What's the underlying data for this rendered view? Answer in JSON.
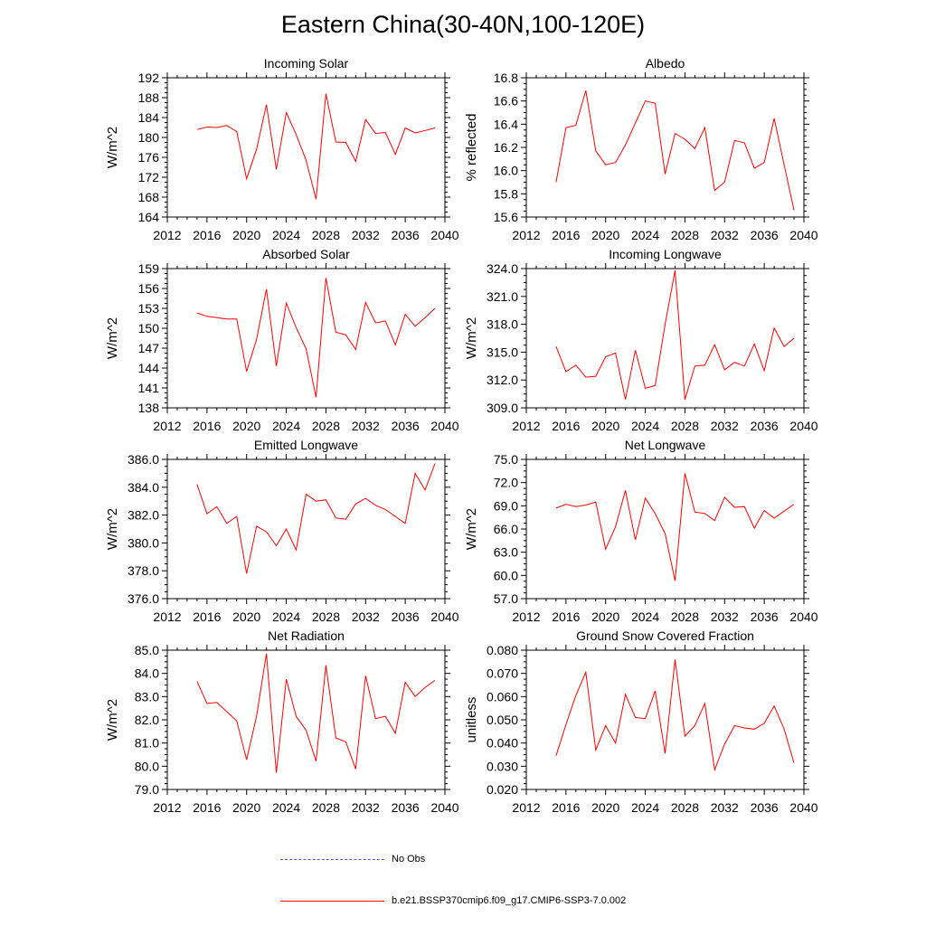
{
  "title": "Eastern China(30-40N,100-120E)",
  "colors": {
    "model": "#ff0000",
    "obs": "#5555cc",
    "axis": "#000000"
  },
  "legend": {
    "obs_label": "No Obs",
    "model_label": "b.e21.BSSP370cmip6.f09_g17.CMIP6-SSP3-7.0.002"
  },
  "chart_data": [
    {
      "type": "line",
      "title": "Incoming Solar",
      "ylabel": "W/m^2",
      "xlabel": "",
      "xlim": [
        2012,
        2040
      ],
      "xticks": [
        "2012",
        "2016",
        "2020",
        "2024",
        "2028",
        "2032",
        "2036",
        "2040"
      ],
      "ylim": [
        164,
        192
      ],
      "yticks": [
        "164",
        "168",
        "172",
        "176",
        "180",
        "184",
        "188",
        "192"
      ],
      "series": [
        {
          "name": "b.e21.BSSP370cmip6.f09_g17.CMIP6-SSP3-7.0.002",
          "x": [
            2015,
            2016,
            2017,
            2018,
            2019,
            2020,
            2021,
            2022,
            2023,
            2024,
            2025,
            2026,
            2027,
            2028,
            2029,
            2030,
            2031,
            2032,
            2033,
            2034,
            2035,
            2036,
            2037,
            2038,
            2039
          ],
          "values": [
            181.6,
            182.1,
            182.0,
            182.4,
            181.2,
            171.7,
            177.6,
            186.6,
            173.6,
            185.0,
            180.6,
            175.4,
            167.6,
            188.8,
            179.1,
            179.0,
            175.2,
            183.6,
            180.8,
            181.0,
            176.6,
            181.9,
            180.9,
            181.4,
            181.9
          ]
        }
      ]
    },
    {
      "type": "line",
      "title": "Albedo",
      "ylabel": "% reflected",
      "xlabel": "",
      "xlim": [
        2012,
        2040
      ],
      "xticks": [
        "2012",
        "2016",
        "2020",
        "2024",
        "2028",
        "2032",
        "2036",
        "2040"
      ],
      "ylim": [
        15.6,
        16.8
      ],
      "yticks": [
        "15.6",
        "15.8",
        "16.0",
        "16.2",
        "16.4",
        "16.6",
        "16.8"
      ],
      "series": [
        {
          "name": "b.e21.BSSP370cmip6.f09_g17.CMIP6-SSP3-7.0.002",
          "x": [
            2015,
            2016,
            2017,
            2018,
            2019,
            2020,
            2021,
            2022,
            2023,
            2024,
            2025,
            2026,
            2027,
            2028,
            2029,
            2030,
            2031,
            2032,
            2033,
            2034,
            2035,
            2036,
            2037,
            2038,
            2039
          ],
          "values": [
            15.9,
            16.37,
            16.39,
            16.69,
            16.17,
            16.05,
            16.07,
            16.22,
            16.41,
            16.6,
            16.58,
            15.97,
            16.32,
            16.27,
            16.19,
            16.37,
            15.83,
            15.9,
            16.26,
            16.24,
            16.02,
            16.07,
            16.45,
            16.05,
            15.66
          ]
        }
      ]
    },
    {
      "type": "line",
      "title": "Absorbed Solar",
      "ylabel": "W/m^2",
      "xlabel": "",
      "xlim": [
        2012,
        2040
      ],
      "xticks": [
        "2012",
        "2016",
        "2020",
        "2024",
        "2028",
        "2032",
        "2036",
        "2040"
      ],
      "ylim": [
        138,
        159
      ],
      "yticks": [
        "138",
        "141",
        "144",
        "147",
        "150",
        "153",
        "156",
        "159"
      ],
      "series": [
        {
          "name": "b.e21.BSSP370cmip6.f09_g17.CMIP6-SSP3-7.0.002",
          "x": [
            2015,
            2016,
            2017,
            2018,
            2019,
            2020,
            2021,
            2022,
            2023,
            2024,
            2025,
            2026,
            2027,
            2028,
            2029,
            2030,
            2031,
            2032,
            2033,
            2034,
            2035,
            2036,
            2037,
            2038,
            2039
          ],
          "values": [
            152.3,
            151.8,
            151.6,
            151.4,
            151.4,
            143.5,
            148.3,
            155.9,
            144.3,
            153.8,
            150.1,
            146.9,
            139.6,
            157.6,
            149.4,
            149.0,
            146.8,
            153.9,
            150.8,
            151.1,
            147.5,
            152.1,
            150.3,
            151.6,
            153.0
          ]
        }
      ]
    },
    {
      "type": "line",
      "title": "Incoming Longwave",
      "ylabel": "W/m^2",
      "xlabel": "",
      "xlim": [
        2012,
        2040
      ],
      "xticks": [
        "2012",
        "2016",
        "2020",
        "2024",
        "2028",
        "2032",
        "2036",
        "2040"
      ],
      "ylim": [
        309.0,
        324.0
      ],
      "yticks": [
        "309.0",
        "312.0",
        "315.0",
        "318.0",
        "321.0",
        "324.0"
      ],
      "series": [
        {
          "name": "b.e21.BSSP370cmip6.f09_g17.CMIP6-SSP3-7.0.002",
          "x": [
            2015,
            2016,
            2017,
            2018,
            2019,
            2020,
            2021,
            2022,
            2023,
            2024,
            2025,
            2026,
            2027,
            2028,
            2029,
            2030,
            2031,
            2032,
            2033,
            2034,
            2035,
            2036,
            2037,
            2038,
            2039
          ],
          "values": [
            315.6,
            312.9,
            313.6,
            312.3,
            312.4,
            314.5,
            314.9,
            309.9,
            315.2,
            311.1,
            311.4,
            318.0,
            323.8,
            309.9,
            313.5,
            313.6,
            315.8,
            313.1,
            313.9,
            313.5,
            315.9,
            313.0,
            317.6,
            315.6,
            316.5
          ]
        }
      ]
    },
    {
      "type": "line",
      "title": "Emitted Longwave",
      "ylabel": "W/m^2",
      "xlabel": "",
      "xlim": [
        2012,
        2040
      ],
      "xticks": [
        "2012",
        "2016",
        "2020",
        "2024",
        "2028",
        "2032",
        "2036",
        "2040"
      ],
      "ylim": [
        376.0,
        386.0
      ],
      "yticks": [
        "376.0",
        "378.0",
        "380.0",
        "382.0",
        "384.0",
        "386.0"
      ],
      "series": [
        {
          "name": "b.e21.BSSP370cmip6.f09_g17.CMIP6-SSP3-7.0.002",
          "x": [
            2015,
            2016,
            2017,
            2018,
            2019,
            2020,
            2021,
            2022,
            2023,
            2024,
            2025,
            2026,
            2027,
            2028,
            2029,
            2030,
            2031,
            2032,
            2033,
            2034,
            2035,
            2036,
            2037,
            2038,
            2039
          ],
          "values": [
            384.2,
            382.1,
            382.6,
            381.4,
            381.9,
            377.8,
            381.2,
            380.8,
            379.8,
            381.0,
            379.5,
            383.5,
            383.0,
            383.1,
            381.8,
            381.7,
            382.8,
            383.2,
            382.7,
            382.4,
            381.9,
            381.4,
            385.0,
            383.8,
            385.7
          ]
        }
      ]
    },
    {
      "type": "line",
      "title": "Net Longwave",
      "ylabel": "W/m^2",
      "xlabel": "",
      "xlim": [
        2012,
        2040
      ],
      "xticks": [
        "2012",
        "2016",
        "2020",
        "2024",
        "2028",
        "2032",
        "2036",
        "2040"
      ],
      "ylim": [
        57.0,
        75.0
      ],
      "yticks": [
        "57.0",
        "60.0",
        "63.0",
        "66.0",
        "69.0",
        "72.0",
        "75.0"
      ],
      "series": [
        {
          "name": "b.e21.BSSP370cmip6.f09_g17.CMIP6-SSP3-7.0.002",
          "x": [
            2015,
            2016,
            2017,
            2018,
            2019,
            2020,
            2021,
            2022,
            2023,
            2024,
            2025,
            2026,
            2027,
            2028,
            2029,
            2030,
            2031,
            2032,
            2033,
            2034,
            2035,
            2036,
            2037,
            2038,
            2039
          ],
          "values": [
            68.7,
            69.2,
            68.9,
            69.1,
            69.5,
            63.4,
            66.3,
            71.0,
            64.6,
            70.0,
            68.0,
            65.4,
            59.3,
            73.2,
            68.2,
            68.0,
            67.1,
            70.1,
            68.8,
            68.9,
            66.1,
            68.4,
            67.4,
            68.3,
            69.2
          ]
        }
      ]
    },
    {
      "type": "line",
      "title": "Net Radiation",
      "ylabel": "W/m^2",
      "xlabel": "",
      "xlim": [
        2012,
        2040
      ],
      "xticks": [
        "2012",
        "2016",
        "2020",
        "2024",
        "2028",
        "2032",
        "2036",
        "2040"
      ],
      "ylim": [
        79.0,
        85.0
      ],
      "yticks": [
        "79.0",
        "80.0",
        "81.0",
        "82.0",
        "83.0",
        "84.0",
        "85.0"
      ],
      "series": [
        {
          "name": "b.e21.BSSP370cmip6.f09_g17.CMIP6-SSP3-7.0.002",
          "x": [
            2015,
            2016,
            2017,
            2018,
            2019,
            2020,
            2021,
            2022,
            2023,
            2024,
            2025,
            2026,
            2027,
            2028,
            2029,
            2030,
            2031,
            2032,
            2033,
            2034,
            2035,
            2036,
            2037,
            2038,
            2039
          ],
          "values": [
            83.65,
            82.7,
            82.75,
            82.35,
            81.95,
            80.28,
            82.15,
            84.85,
            79.72,
            83.75,
            82.15,
            81.55,
            80.22,
            84.35,
            81.22,
            81.05,
            79.88,
            83.9,
            82.05,
            82.15,
            81.42,
            83.62,
            83.0,
            83.4,
            83.7
          ]
        }
      ]
    },
    {
      "type": "line",
      "title": "Ground Snow Covered Fraction",
      "ylabel": "unitless",
      "xlabel": "",
      "xlim": [
        2012,
        2040
      ],
      "xticks": [
        "2012",
        "2016",
        "2020",
        "2024",
        "2028",
        "2032",
        "2036",
        "2040"
      ],
      "ylim": [
        0.02,
        0.08
      ],
      "yticks": [
        "0.020",
        "0.030",
        "0.040",
        "0.050",
        "0.060",
        "0.070",
        "0.080"
      ],
      "series": [
        {
          "name": "b.e21.BSSP370cmip6.f09_g17.CMIP6-SSP3-7.0.002",
          "x": [
            2015,
            2016,
            2017,
            2018,
            2019,
            2020,
            2021,
            2022,
            2023,
            2024,
            2025,
            2026,
            2027,
            2028,
            2029,
            2030,
            2031,
            2032,
            2033,
            2034,
            2035,
            2036,
            2037,
            2038,
            2039
          ],
          "values": [
            0.0345,
            0.048,
            0.0605,
            0.0705,
            0.037,
            0.0475,
            0.04,
            0.061,
            0.051,
            0.0505,
            0.0625,
            0.0355,
            0.076,
            0.043,
            0.0475,
            0.057,
            0.0285,
            0.0395,
            0.0475,
            0.0465,
            0.046,
            0.0485,
            0.056,
            0.046,
            0.0315
          ]
        }
      ]
    }
  ]
}
